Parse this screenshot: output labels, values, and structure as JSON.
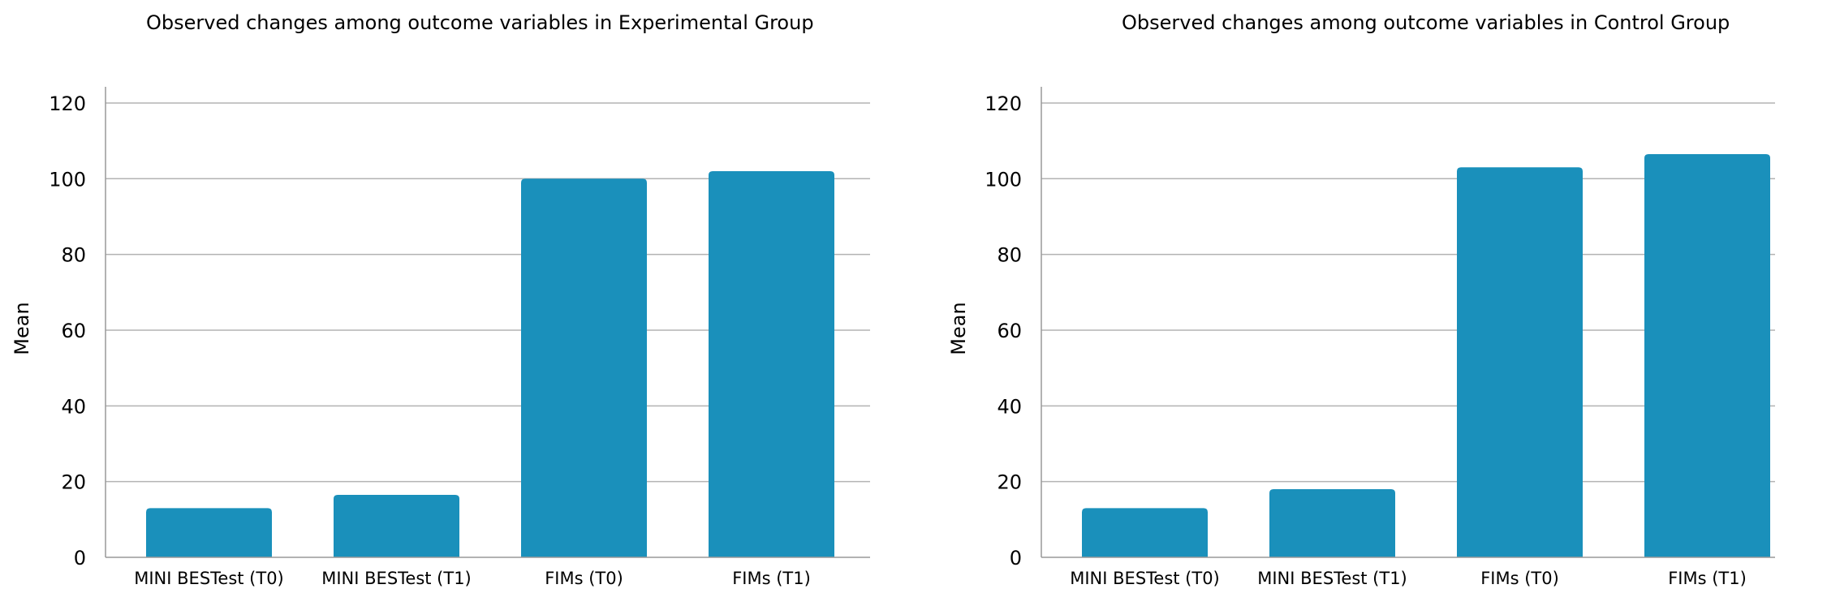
{
  "chart_data": [
    {
      "type": "bar",
      "title": "Observed changes among outcome variables in Experimental Group",
      "xlabel": "",
      "ylabel": "Mean",
      "categories": [
        "MINI BESTest (T0)",
        "MINI BESTest (T1)",
        "FIMs (T0)",
        "FIMs (T1)"
      ],
      "values": [
        13,
        16.5,
        100,
        102
      ],
      "ylim": [
        0,
        120
      ],
      "yticks": [
        0,
        20,
        40,
        60,
        80,
        100,
        120
      ],
      "grid": true,
      "bar_color": "#1a90bb"
    },
    {
      "type": "bar",
      "title": "Observed changes among outcome variables in Control Group",
      "xlabel": "",
      "ylabel": "Mean",
      "categories": [
        "MINI BESTest (T0)",
        "MINI BESTest (T1)",
        "FIMs (T0)",
        "FIMs (T1)"
      ],
      "values": [
        13,
        18,
        103,
        106.5
      ],
      "ylim": [
        0,
        120
      ],
      "yticks": [
        0,
        20,
        40,
        60,
        80,
        100,
        120
      ],
      "grid": true,
      "bar_color": "#1a90bb"
    }
  ]
}
